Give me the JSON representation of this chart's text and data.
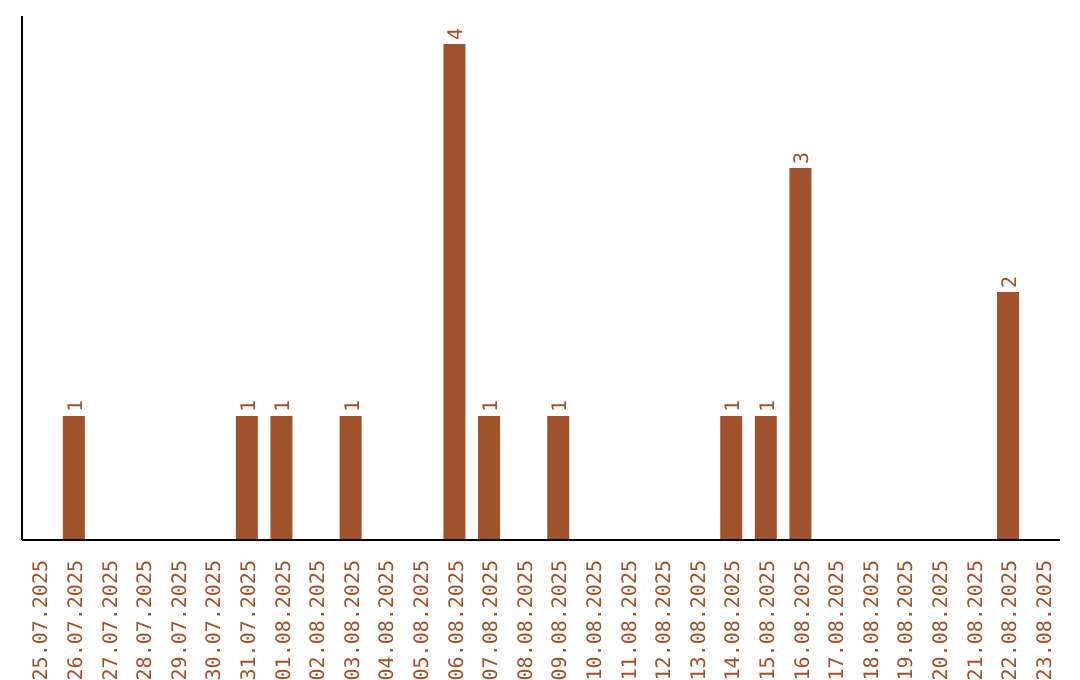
{
  "chart_data": {
    "type": "bar",
    "categories": [
      "25.07.2025",
      "26.07.2025",
      "27.07.2025",
      "28.07.2025",
      "29.07.2025",
      "30.07.2025",
      "31.07.2025",
      "01.08.2025",
      "02.08.2025",
      "03.08.2025",
      "04.08.2025",
      "05.08.2025",
      "06.08.2025",
      "07.08.2025",
      "08.08.2025",
      "09.08.2025",
      "10.08.2025",
      "11.08.2025",
      "12.08.2025",
      "13.08.2025",
      "14.08.2025",
      "15.08.2025",
      "16.08.2025",
      "17.08.2025",
      "18.08.2025",
      "19.08.2025",
      "20.08.2025",
      "21.08.2025",
      "22.08.2025",
      "23.08.2025"
    ],
    "values": [
      0,
      1,
      0,
      0,
      0,
      0,
      1,
      1,
      0,
      1,
      0,
      0,
      4,
      1,
      0,
      1,
      0,
      0,
      0,
      0,
      1,
      1,
      3,
      0,
      0,
      0,
      0,
      0,
      2,
      0
    ],
    "value_labels": [
      null,
      "1",
      null,
      null,
      null,
      null,
      "1",
      "1",
      null,
      "1",
      null,
      null,
      "4",
      "1",
      null,
      "1",
      null,
      null,
      null,
      null,
      "1",
      "1",
      "3",
      null,
      null,
      null,
      null,
      null,
      "2",
      null
    ],
    "color": "#a0522d",
    "tick_labels": "x",
    "grid": false
  }
}
